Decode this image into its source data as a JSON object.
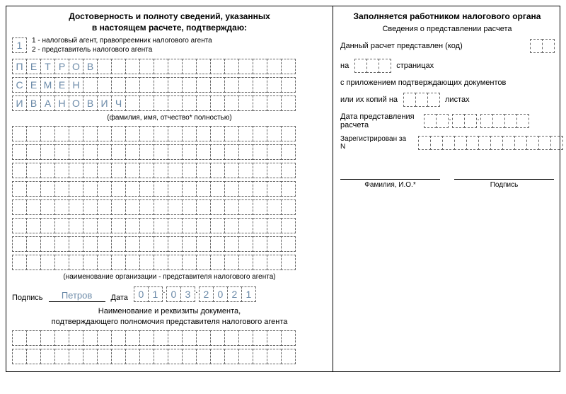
{
  "left": {
    "header1": "Достоверность и полноту сведений, указанных",
    "header2": "в настоящем расчете, подтверждаю:",
    "codeBox": "1",
    "legend1": "1 - налоговый агент, правопреемник налогового агента",
    "legend2": "2 - представитель налогового агента",
    "name1": [
      "П",
      "Е",
      "Т",
      "Р",
      "О",
      "В",
      "",
      "",
      "",
      "",
      "",
      "",
      "",
      "",
      "",
      "",
      "",
      "",
      "",
      ""
    ],
    "name2": [
      "С",
      "Е",
      "М",
      "Е",
      "Н",
      "",
      "",
      "",
      "",
      "",
      "",
      "",
      "",
      "",
      "",
      "",
      "",
      "",
      "",
      ""
    ],
    "name3": [
      "И",
      "В",
      "А",
      "Н",
      "О",
      "В",
      "И",
      "Ч",
      "",
      "",
      "",
      "",
      "",
      "",
      "",
      "",
      "",
      "",
      "",
      ""
    ],
    "fioCaption": "(фамилия, имя, отчество* полностью)",
    "orgCaption": "(наименование организации - представителя налогового агента)",
    "sigLabel": "Подпись",
    "sigValue": "Петров",
    "dateLabel": "Дата",
    "date": [
      "0",
      "1",
      ".",
      "0",
      "3",
      ".",
      "2",
      "0",
      "2",
      "1"
    ],
    "docHeader1": "Наименование и реквизиты документа,",
    "docHeader2": "подтверждающего полномочия представителя налогового агента"
  },
  "right": {
    "header": "Заполняется работником налогового органа",
    "sub": "Сведения о представлении расчета",
    "row1": "Данный расчет представлен (код)",
    "row2a": "на",
    "row2b": "страницах",
    "row3": "с приложением подтверждающих документов",
    "row4a": "или их копий на",
    "row4b": "листах",
    "row5": "Дата представления расчета",
    "row6": "Зарегистрирован за N",
    "footFio": "Фамилия, И.О.*",
    "footSig": "Подпись"
  }
}
